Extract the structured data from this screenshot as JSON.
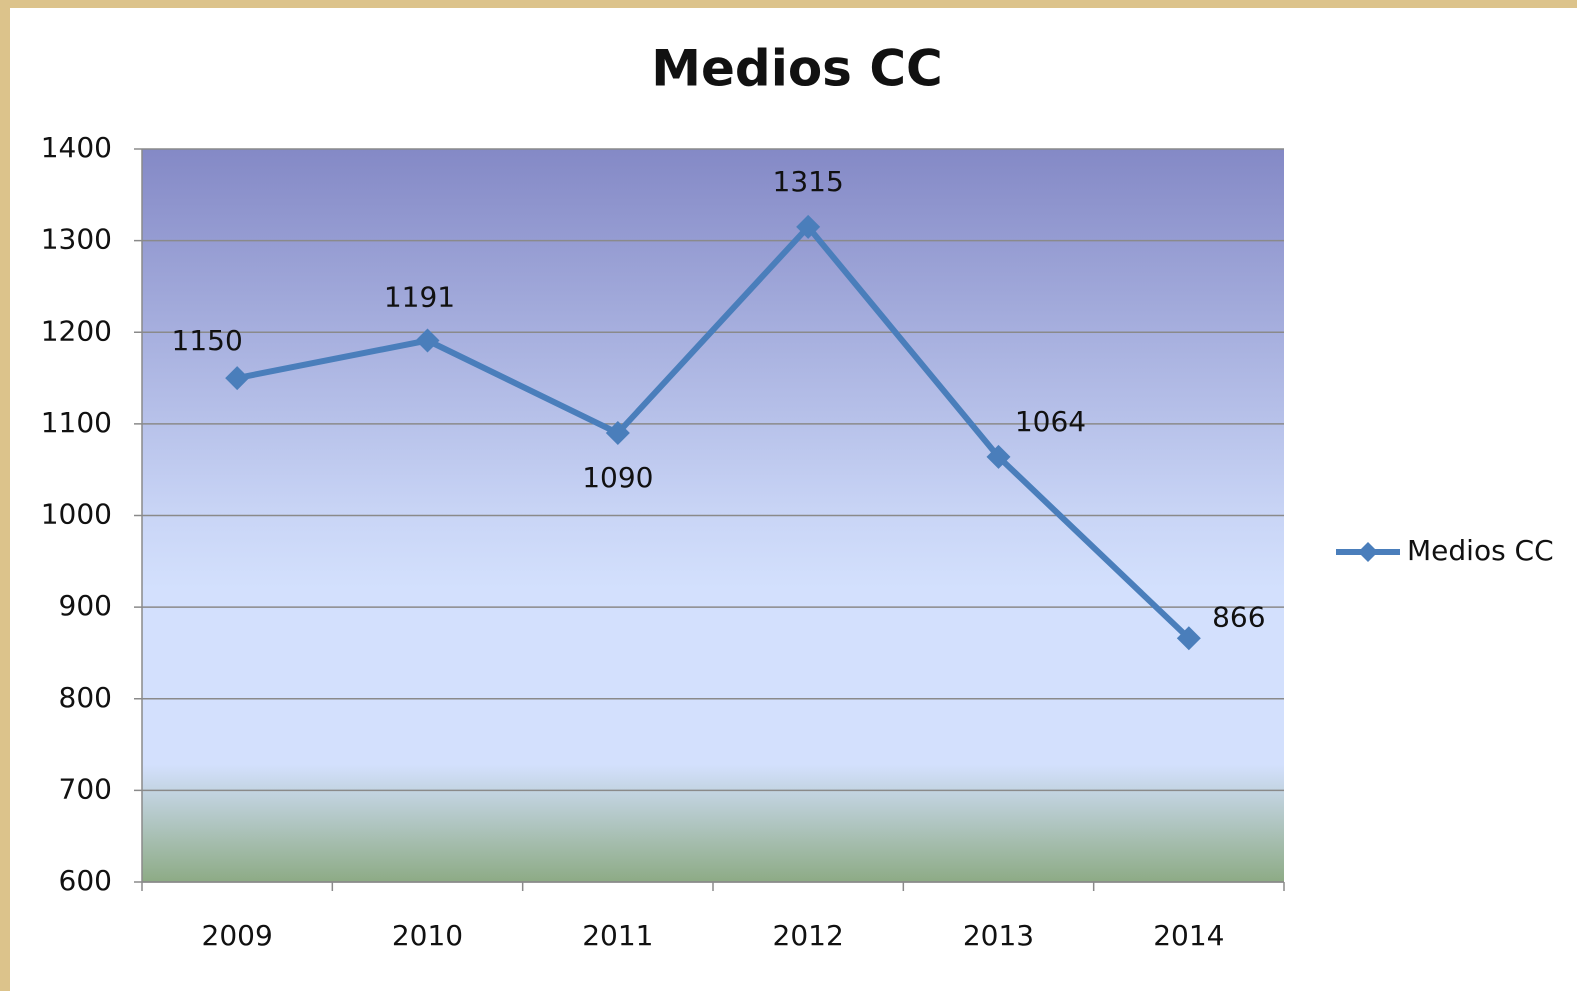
{
  "chart_data": {
    "type": "line",
    "title": "Medios CC",
    "categories": [
      "2009",
      "2010",
      "2011",
      "2012",
      "2013",
      "2014"
    ],
    "series": [
      {
        "name": "Medios CC",
        "color": "#4a7ebb",
        "values": [
          1150,
          1191,
          1090,
          1315,
          1064,
          866
        ]
      }
    ],
    "ylim": [
      600,
      1400
    ],
    "yticks": [
      600,
      700,
      800,
      900,
      1000,
      1100,
      1200,
      1300,
      1400
    ],
    "grid": true,
    "legend": "right"
  }
}
